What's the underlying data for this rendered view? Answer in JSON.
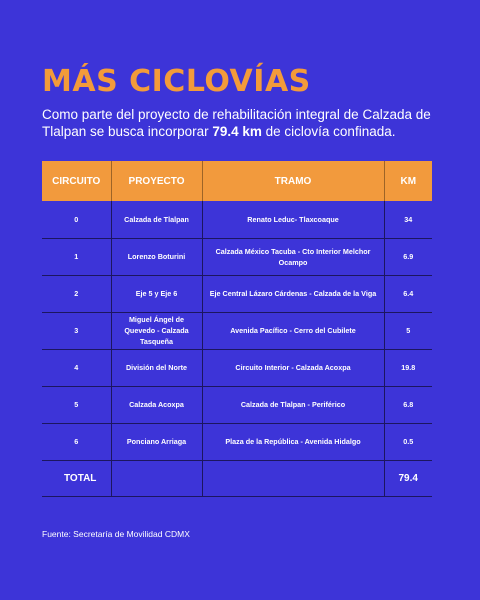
{
  "title": "MÁS CICLOVÍAS",
  "intro": {
    "before": "Como parte del proyecto de rehabilitación integral de Calzada de Tlalpan se busca incorporar ",
    "highlight": "79.4 km",
    "after": " de ciclovía confinada."
  },
  "table": {
    "headers": [
      "CIRCUITO",
      "PROYECTO",
      "TRAMO",
      "KM"
    ],
    "rows": [
      {
        "circuito": "0",
        "proyecto": "Calzada de Tlalpan",
        "tramo": "Renato Leduc- Tlaxcoaque",
        "km": "34"
      },
      {
        "circuito": "1",
        "proyecto": "Lorenzo Boturini",
        "tramo": "Calzada México Tacuba - Cto Interior Melchor Ocampo",
        "km": "6.9"
      },
      {
        "circuito": "2",
        "proyecto": "Eje 5 y Eje 6",
        "tramo": "Eje Central Lázaro Cárdenas - Calzada de la Viga",
        "km": "6.4"
      },
      {
        "circuito": "3",
        "proyecto": "Miguel Ángel de Quevedo - Calzada Tasqueña",
        "tramo": "Avenida Pacífico - Cerro del Cubilete",
        "km": "5"
      },
      {
        "circuito": "4",
        "proyecto": "División del Norte",
        "tramo": "Circuito Interior - Calzada Acoxpa",
        "km": "19.8"
      },
      {
        "circuito": "5",
        "proyecto": "Calzada Acoxpa",
        "tramo": "Calzada de Tlalpan - Periférico",
        "km": "6.8"
      },
      {
        "circuito": "6",
        "proyecto": "Ponciano Arriaga",
        "tramo": "Plaza de la República - Avenida Hidalgo",
        "km": "0.5"
      }
    ],
    "total_label": "TOTAL",
    "total_km": "79.4"
  },
  "source": "Fuente: Secretaría de Movilidad CDMX",
  "colors": {
    "background": "#3d34d8",
    "accent": "#f39b3a",
    "header": "#f29a3d",
    "lines": "#1c1660"
  }
}
